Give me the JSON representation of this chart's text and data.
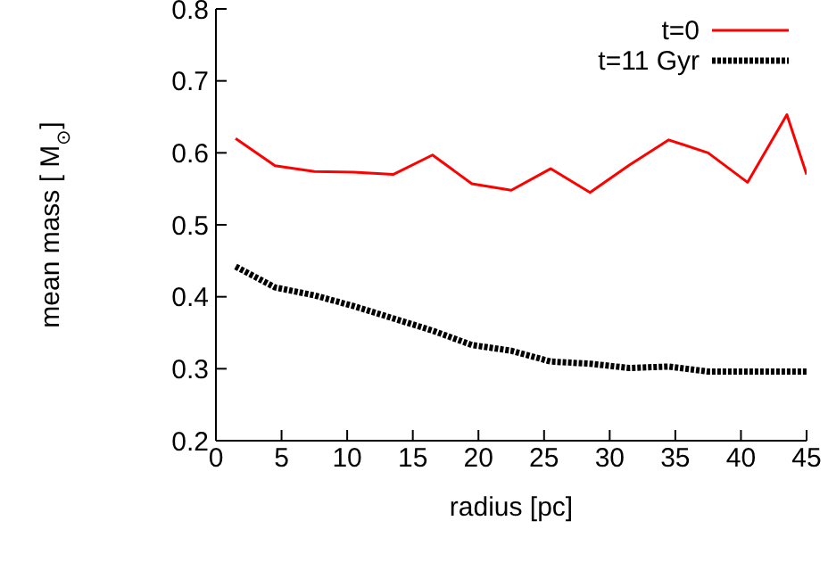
{
  "chart_data": {
    "type": "line",
    "xlabel": "radius [pc]",
    "ylabel": "mean mass [ M$_{⊙}$]",
    "xlim": [
      0,
      45
    ],
    "xticks": [
      0,
      5,
      10,
      15,
      20,
      25,
      30,
      35,
      40,
      45
    ],
    "ylim": [
      0.2,
      0.8
    ],
    "yticks": [
      0.2,
      0.3,
      0.4,
      0.5,
      0.6,
      0.7,
      0.8
    ],
    "legend": "top right",
    "grid": false,
    "marker": "none",
    "series": [
      {
        "name": "t=0",
        "color": "#ff0000",
        "line_style": "solid",
        "x": [
          1.5,
          4.5,
          7.5,
          10.5,
          13.5,
          16.5,
          19.5,
          22.5,
          25.5,
          28.5,
          31.5,
          34.5,
          37.5,
          40.5,
          43.5,
          45
        ],
        "values": [
          0.62,
          0.582,
          0.574,
          0.573,
          0.57,
          0.597,
          0.557,
          0.548,
          0.578,
          0.545,
          0.583,
          0.618,
          0.6,
          0.559,
          0.653,
          0.57
        ]
      },
      {
        "name": "t=11 Gyr",
        "color": "#000000",
        "line_style": "dotted",
        "x": [
          1.5,
          4.5,
          7.5,
          10.5,
          13.5,
          16.5,
          19.5,
          22.5,
          25.5,
          28.5,
          31.5,
          34.5,
          37.5,
          40.5,
          43.5,
          45
        ],
        "values": [
          0.442,
          0.413,
          0.402,
          0.387,
          0.37,
          0.353,
          0.333,
          0.325,
          0.31,
          0.307,
          0.301,
          0.303,
          0.296,
          0.296,
          0.296,
          0.296
        ]
      }
    ]
  }
}
